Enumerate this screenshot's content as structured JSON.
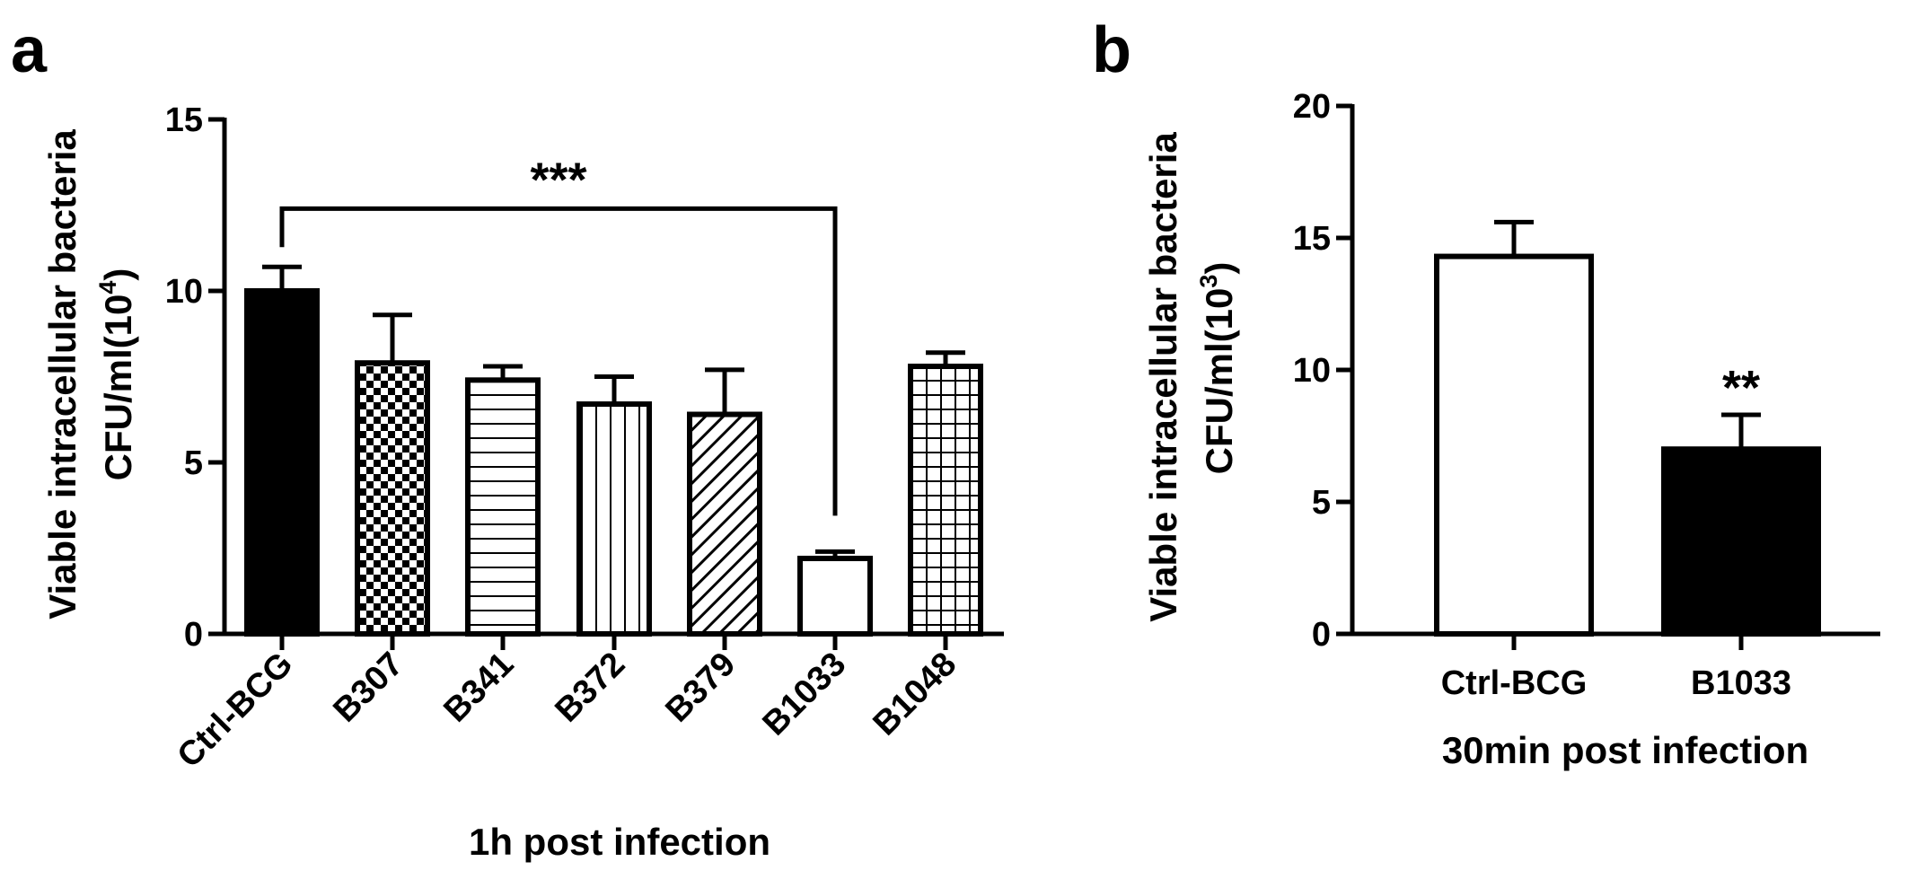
{
  "chart_data": [
    {
      "panel": "a",
      "type": "bar",
      "title": "",
      "xlabel": "1h post infection",
      "ylabel_line1": "Viable intracellular bacteria",
      "ylabel_line2_prefix": "CFU/ml(10",
      "ylabel_line2_exp": "4",
      "ylabel_line2_suffix": ")",
      "ylim": [
        0,
        15
      ],
      "yticks": [
        "0",
        "5",
        "10",
        "15"
      ],
      "categories": [
        "Ctrl-BCG",
        "B307",
        "B341",
        "B372",
        "B379",
        "B1033",
        "B1048"
      ],
      "values": [
        10.0,
        7.9,
        7.4,
        6.7,
        6.4,
        2.2,
        7.8
      ],
      "errors": [
        0.7,
        1.4,
        0.4,
        0.8,
        1.3,
        0.2,
        0.4
      ],
      "fills": [
        "solid",
        "checker",
        "hlines",
        "vlines",
        "diag",
        "empty",
        "grid"
      ],
      "significance": {
        "label": "***",
        "from": "Ctrl-BCG",
        "to": "B1033"
      }
    },
    {
      "panel": "b",
      "type": "bar",
      "title": "",
      "xlabel": "30min post infection",
      "ylabel_line1": "Viable intracellular bacteria",
      "ylabel_line2_prefix": "CFU/ml(10",
      "ylabel_line2_exp": "3",
      "ylabel_line2_suffix": ")",
      "ylim": [
        0,
        20
      ],
      "yticks": [
        "0",
        "5",
        "10",
        "15",
        "20"
      ],
      "categories": [
        "Ctrl-BCG",
        "B1033"
      ],
      "values": [
        14.3,
        7.0
      ],
      "errors": [
        1.3,
        1.3
      ],
      "fills": [
        "empty",
        "solid"
      ],
      "significance": {
        "label": "**",
        "on": "B1033"
      }
    }
  ],
  "colors": {
    "ink": "#000000",
    "background": "#ffffff"
  }
}
